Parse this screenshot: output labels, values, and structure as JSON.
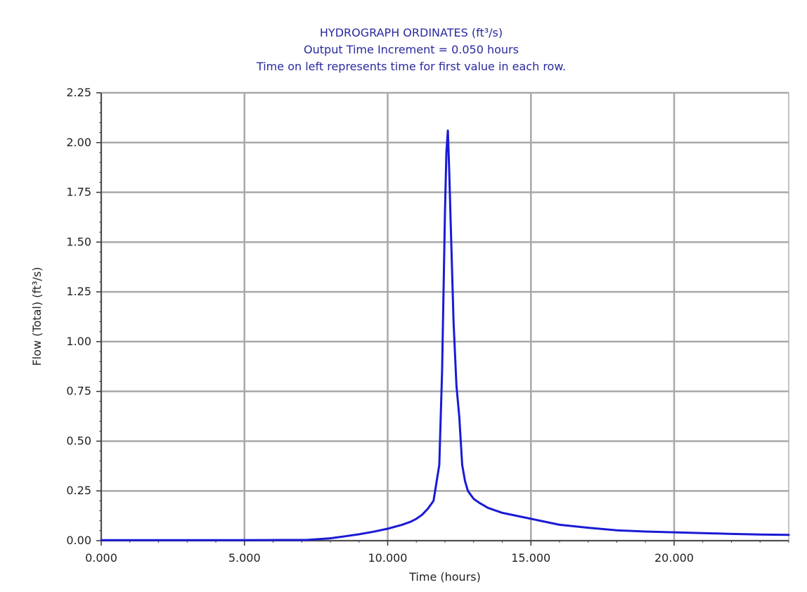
{
  "chart_data": {
    "type": "line",
    "title": "HYDROGRAPH ORDINATES (ft³/s)",
    "subtitle_1": "Output Time Increment = 0.050 hours",
    "subtitle_2": "Time on left represents time for first value in each row.",
    "xlabel": "Time (hours)",
    "ylabel": "Flow (Total) (ft³/s)",
    "xlim": [
      0,
      24
    ],
    "ylim": [
      0,
      2.25
    ],
    "x_ticks": [
      "0.000",
      "5.000",
      "10.000",
      "15.000",
      "20.000"
    ],
    "x_tick_values": [
      0,
      5,
      10,
      15,
      20
    ],
    "y_ticks": [
      "0.00",
      "0.25",
      "0.50",
      "0.75",
      "1.00",
      "1.25",
      "1.50",
      "1.75",
      "2.00",
      "2.25"
    ],
    "y_tick_values": [
      0,
      0.25,
      0.5,
      0.75,
      1.0,
      1.25,
      1.5,
      1.75,
      2.0,
      2.25
    ],
    "grid": true,
    "series": [
      {
        "color": "#1a1ad6",
        "x": [
          0,
          5,
          7.2,
          8,
          8.5,
          9,
          9.5,
          10,
          10.5,
          10.8,
          11,
          11.2,
          11.4,
          11.6,
          11.8,
          11.9,
          12.0,
          12.05,
          12.1,
          12.15,
          12.2,
          12.3,
          12.4,
          12.5,
          12.6,
          12.7,
          12.8,
          13.0,
          13.2,
          13.5,
          14.0,
          14.5,
          15.0,
          15.5,
          16.0,
          17.0,
          18.0,
          19.0,
          20.0,
          21.0,
          22.0,
          23.0,
          24.0
        ],
        "y": [
          0.003,
          0.003,
          0.004,
          0.012,
          0.022,
          0.032,
          0.045,
          0.06,
          0.08,
          0.095,
          0.11,
          0.13,
          0.16,
          0.2,
          0.38,
          0.85,
          1.65,
          1.95,
          2.06,
          1.85,
          1.6,
          1.1,
          0.78,
          0.62,
          0.38,
          0.3,
          0.25,
          0.21,
          0.19,
          0.165,
          0.14,
          0.125,
          0.11,
          0.095,
          0.08,
          0.065,
          0.052,
          0.046,
          0.042,
          0.038,
          0.034,
          0.031,
          0.029
        ]
      }
    ]
  }
}
